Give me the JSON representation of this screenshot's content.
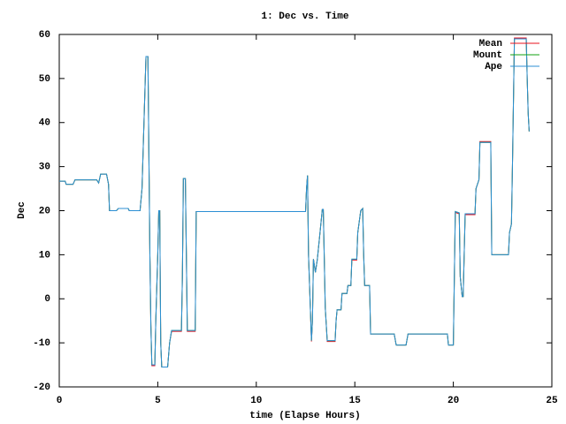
{
  "chart_data": {
    "type": "line",
    "title": "1: Dec vs. Time",
    "x_label": "time (Elapse Hours)",
    "y_label": "Dec",
    "x": [
      0,
      0.3,
      0.35,
      0.7,
      0.8,
      1.9,
      2.0,
      2.1,
      2.4,
      2.5,
      2.55,
      2.9,
      3.0,
      3.5,
      3.55,
      4.1,
      4.2,
      4.3,
      4.4,
      4.5,
      4.6,
      4.65,
      4.7,
      4.85,
      4.9,
      5.0,
      5.05,
      5.1,
      5.15,
      5.2,
      5.5,
      5.6,
      5.7,
      6.2,
      6.25,
      6.3,
      6.4,
      6.5,
      6.9,
      6.95,
      12.5,
      12.55,
      12.6,
      12.65,
      12.75,
      12.8,
      12.85,
      12.9,
      13.0,
      13.1,
      13.3,
      13.35,
      13.4,
      13.5,
      13.6,
      14.0,
      14.05,
      14.1,
      14.3,
      14.35,
      14.6,
      14.65,
      14.8,
      14.85,
      15.1,
      15.15,
      15.3,
      15.4,
      15.45,
      15.5,
      15.75,
      15.8,
      17.0,
      17.1,
      17.6,
      17.7,
      19.7,
      19.75,
      20.0,
      20.1,
      20.3,
      20.35,
      20.45,
      20.5,
      20.6,
      21.1,
      21.15,
      21.3,
      21.35,
      21.9,
      21.95,
      22.8,
      22.85,
      22.95,
      23.0,
      23.1,
      23.7,
      23.75,
      23.8,
      23.85
    ],
    "series": [
      {
        "name": "Mean",
        "color": "#e8101e",
        "values": [
          26.7,
          26.7,
          26,
          26,
          27,
          27,
          26.3,
          28.3,
          28.3,
          26,
          20,
          20,
          20.5,
          20.5,
          20,
          20,
          25,
          40,
          55,
          55,
          10,
          -6,
          -15.2,
          -15.2,
          -5,
          10,
          20,
          20,
          -10,
          -15.5,
          -15.5,
          -10,
          -7.4,
          -7.4,
          5,
          27.3,
          27.3,
          -7.4,
          -7.4,
          19.8,
          19.8,
          25,
          28,
          10,
          -3,
          -9.7,
          -5,
          9,
          6,
          9,
          18,
          20.3,
          20.3,
          -2,
          -9.7,
          -9.7,
          -5,
          -2.5,
          -2.5,
          1.2,
          1.2,
          3,
          3,
          8.8,
          8.8,
          15,
          20,
          20.5,
          10,
          3,
          3,
          -8,
          -8,
          -10.5,
          -10.5,
          -8,
          -8,
          -10.5,
          -10.5,
          19.6,
          19.3,
          5,
          0.5,
          0.5,
          19.1,
          19.1,
          25,
          27,
          35.7,
          35.7,
          10,
          10,
          15,
          17,
          30,
          59.2,
          59.2,
          50,
          42,
          38
        ]
      },
      {
        "name": "Mount",
        "color": "#10a010",
        "values": [
          26.7,
          26.7,
          26,
          26,
          27,
          27,
          26.3,
          28.3,
          28.3,
          26,
          20,
          20,
          20.5,
          20.5,
          20,
          20,
          25,
          40,
          55,
          55,
          10,
          -6,
          -15,
          -15,
          -5,
          10,
          20,
          20,
          -10,
          -15.5,
          -15.5,
          -10,
          -7.2,
          -7.2,
          5,
          27.3,
          27.3,
          -7.2,
          -7.2,
          19.8,
          19.8,
          25,
          28,
          10,
          -3,
          -9.5,
          -5,
          9,
          6,
          9,
          18,
          20.3,
          20.3,
          -2,
          -9.5,
          -9.5,
          -5,
          -2.5,
          -2.5,
          1.2,
          1.2,
          3,
          3,
          9,
          9,
          15,
          20,
          20.5,
          10,
          3,
          3,
          -8,
          -8,
          -10.5,
          -10.5,
          -8,
          -8,
          -10.5,
          -10.5,
          19.8,
          19.5,
          5,
          0.5,
          0.5,
          19.3,
          19.3,
          25,
          27,
          35.5,
          35.5,
          10,
          10,
          15,
          17,
          30,
          59,
          59,
          50,
          42,
          38
        ]
      },
      {
        "name": "Ape",
        "color": "#2c8fd4",
        "values": [
          26.7,
          26.7,
          26,
          26,
          27,
          27,
          26.3,
          28.3,
          28.3,
          26,
          20,
          20,
          20.5,
          20.5,
          20,
          20,
          25,
          40,
          55,
          55,
          10,
          -6,
          -15,
          -15,
          -5,
          10,
          20,
          20,
          -10,
          -15.5,
          -15.5,
          -10,
          -7.2,
          -7.2,
          5,
          27.3,
          27.3,
          -7.2,
          -7.2,
          19.8,
          19.8,
          25,
          28,
          10,
          -3,
          -9.5,
          -5,
          9,
          6,
          9,
          18,
          20.3,
          20.3,
          -2,
          -9.5,
          -9.5,
          -5,
          -2.5,
          -2.5,
          1.2,
          1.2,
          3,
          3,
          9,
          9,
          15,
          20,
          20.5,
          10,
          3,
          3,
          -8,
          -8,
          -10.5,
          -10.5,
          -8,
          -8,
          -10.5,
          -10.5,
          19.8,
          19.5,
          5,
          0.5,
          0.5,
          19.3,
          19.3,
          25,
          27,
          35.5,
          35.5,
          10,
          10,
          15,
          17,
          30,
          59,
          59,
          50,
          42,
          38
        ]
      }
    ],
    "xlim": [
      0,
      25
    ],
    "xticks": [
      0,
      5,
      10,
      15,
      20,
      25
    ],
    "ylim": [
      -20,
      60
    ],
    "yticks": [
      -20,
      -10,
      0,
      10,
      20,
      30,
      40,
      50,
      60
    ],
    "legend": "top-right"
  }
}
